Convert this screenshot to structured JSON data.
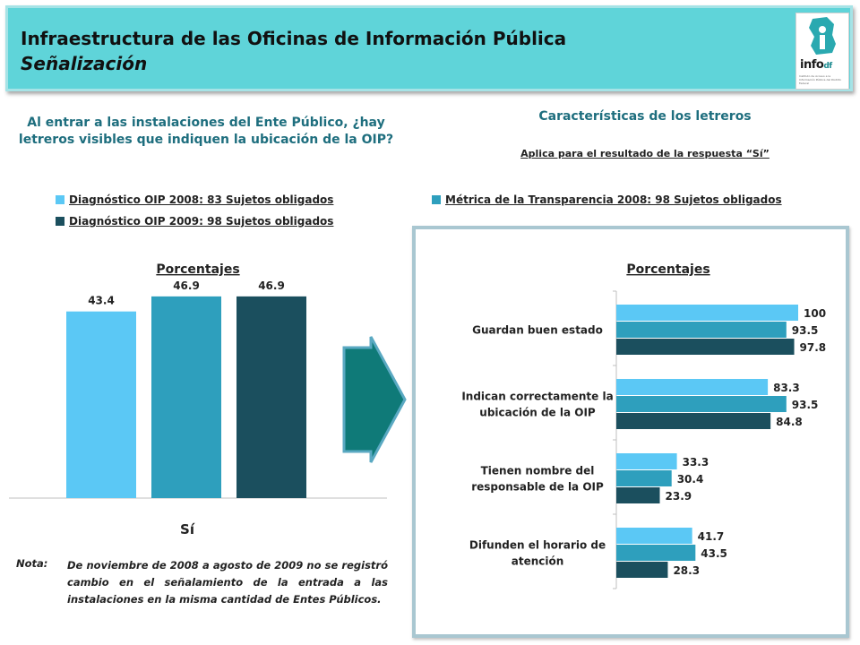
{
  "header": {
    "title": "Infraestructura de las Oficinas de Información Pública",
    "subtitle": "Señalización",
    "logo_text": "info",
    "logo_suffix": "df",
    "logo_caption": "Instituto de Acceso a la Información Pública del Distrito Federal"
  },
  "left": {
    "question": "Al entrar a las instalaciones del Ente Público, ¿hay letreros visibles que indiquen la ubicación de la OIP?",
    "legend": [
      {
        "label": "Diagnóstico OIP 2008: 83 Sujetos obligados",
        "color": "#5bc8f5"
      },
      {
        "label": "Diagnóstico OIP 2009: 98 Sujetos obligados",
        "color": "#1b4f5e"
      }
    ]
  },
  "right": {
    "title": "Características de los letreros",
    "note": "Aplica para el resultado de la respuesta “Sí”",
    "legend": [
      {
        "label": "Métrica de la Transparencia 2008: 98 Sujetos obligados",
        "color": "#2e9fbd"
      }
    ]
  },
  "nota": {
    "label": "Nota:",
    "text": "De noviembre de 2008 a agosto de 2009 no se registró cambio en el señalamiento de la entrada a las instalaciones en la misma cantidad de Entes Públicos."
  },
  "colors": {
    "light_blue": "#5bc8f5",
    "mid_blue": "#2e9fbd",
    "dark_teal": "#1b4f5e",
    "arrow": "#0f7a78",
    "header_bg": "#5fd4d9"
  },
  "chart_data": [
    {
      "type": "bar",
      "title": "Porcentajes",
      "categories": [
        "Sí"
      ],
      "series": [
        {
          "name": "Diagnóstico OIP 2008: 83 Sujetos obligados",
          "values": [
            43.4
          ],
          "color": "#5bc8f5"
        },
        {
          "name": "Métrica de la Transparencia 2008: 98 Sujetos obligados",
          "values": [
            46.9
          ],
          "color": "#2e9fbd"
        },
        {
          "name": "Diagnóstico OIP 2009: 98 Sujetos obligados",
          "values": [
            46.9
          ],
          "color": "#1b4f5e"
        }
      ],
      "ylim": [
        0,
        50
      ],
      "grid": false
    },
    {
      "type": "bar",
      "orientation": "horizontal",
      "title": "Porcentajes",
      "categories": [
        "Guardan buen estado",
        "Indican correctamente la ubicación de la OIP",
        "Tienen nombre del responsable de la OIP",
        "Difunden el horario de atención"
      ],
      "category_lines": [
        [
          "Guardan buen estado"
        ],
        [
          "Indican correctamente la",
          "ubicación de la OIP"
        ],
        [
          "Tienen nombre del",
          "responsable de la OIP"
        ],
        [
          "Difunden el horario de",
          "atención"
        ]
      ],
      "series": [
        {
          "name": "Diagnóstico OIP 2008: 83 Sujetos obligados",
          "values": [
            100,
            83.3,
            33.3,
            41.7
          ],
          "color": "#5bc8f5"
        },
        {
          "name": "Métrica de la Transparencia 2008: 98 Sujetos obligados",
          "values": [
            93.5,
            93.5,
            30.4,
            43.5
          ],
          "color": "#2e9fbd"
        },
        {
          "name": "Diagnóstico OIP 2009: 98 Sujetos obligados",
          "values": [
            97.8,
            84.8,
            23.9,
            28.3
          ],
          "color": "#1b4f5e"
        }
      ],
      "xlim": [
        0,
        100
      ],
      "grid": false
    }
  ]
}
